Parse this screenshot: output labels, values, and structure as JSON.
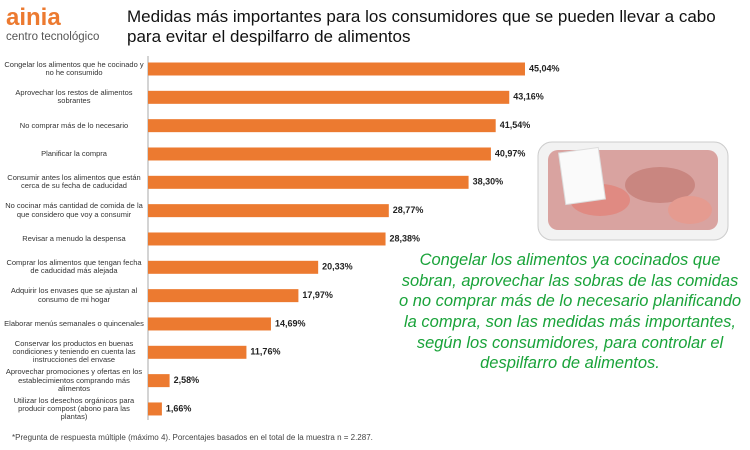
{
  "logo": {
    "name": "ainia",
    "tagline": "centro tecnológico"
  },
  "chart_data": {
    "type": "bar",
    "orientation": "horizontal",
    "title": "Medidas más importantes para los consumidores que se pueden llevar a cabo para evitar el despilfarro de alimentos",
    "categories": [
      "Congelar los alimentos que he cocinado y no he consumido",
      "Aprovechar los restos de alimentos sobrantes",
      "No comprar más de lo necesario",
      "Planificar la compra",
      "Consumir antes los alimentos que están cerca de su fecha de caducidad",
      "No cocinar más cantidad de comida de la que considero que voy a consumir",
      "Revisar a menudo la despensa",
      "Comprar los alimentos que tengan fecha de caducidad más alejada",
      "Adquirir los envases que se ajustan al consumo de mi hogar",
      "Elaborar menús semanales o quincenales",
      "Conservar los productos en buenas condiciones y teniendo en cuenta las instrucciones del envase",
      "Aprovechar promociones y ofertas en los establecimientos comprando más alimentos",
      "Utilizar los desechos orgánicos para producir compost (abono para las plantas)"
    ],
    "values": [
      45.04,
      43.16,
      41.54,
      40.97,
      38.3,
      28.77,
      28.38,
      20.33,
      17.97,
      14.69,
      11.76,
      2.58,
      1.66
    ],
    "value_labels": [
      "45,04%",
      "43,16%",
      "41,54%",
      "40,97%",
      "38,30%",
      "28,77%",
      "28,38%",
      "20,33%",
      "17,97%",
      "14,69%",
      "11,76%",
      "2,58%",
      "1,66%"
    ],
    "color": "#ec7a30"
  },
  "note": "Congelar los alimentos ya cocinados que sobran, aprovechar las sobras de las comidas o no comprar más de lo necesario planificando la compra, son las medidas más importantes, según los consumidores, para controlar el despilfarro de alimentos.",
  "footnote": "*Pregunta de respuesta múltiple (máximo 4). Porcentajes basados en el total de la muestra n = 2.287."
}
